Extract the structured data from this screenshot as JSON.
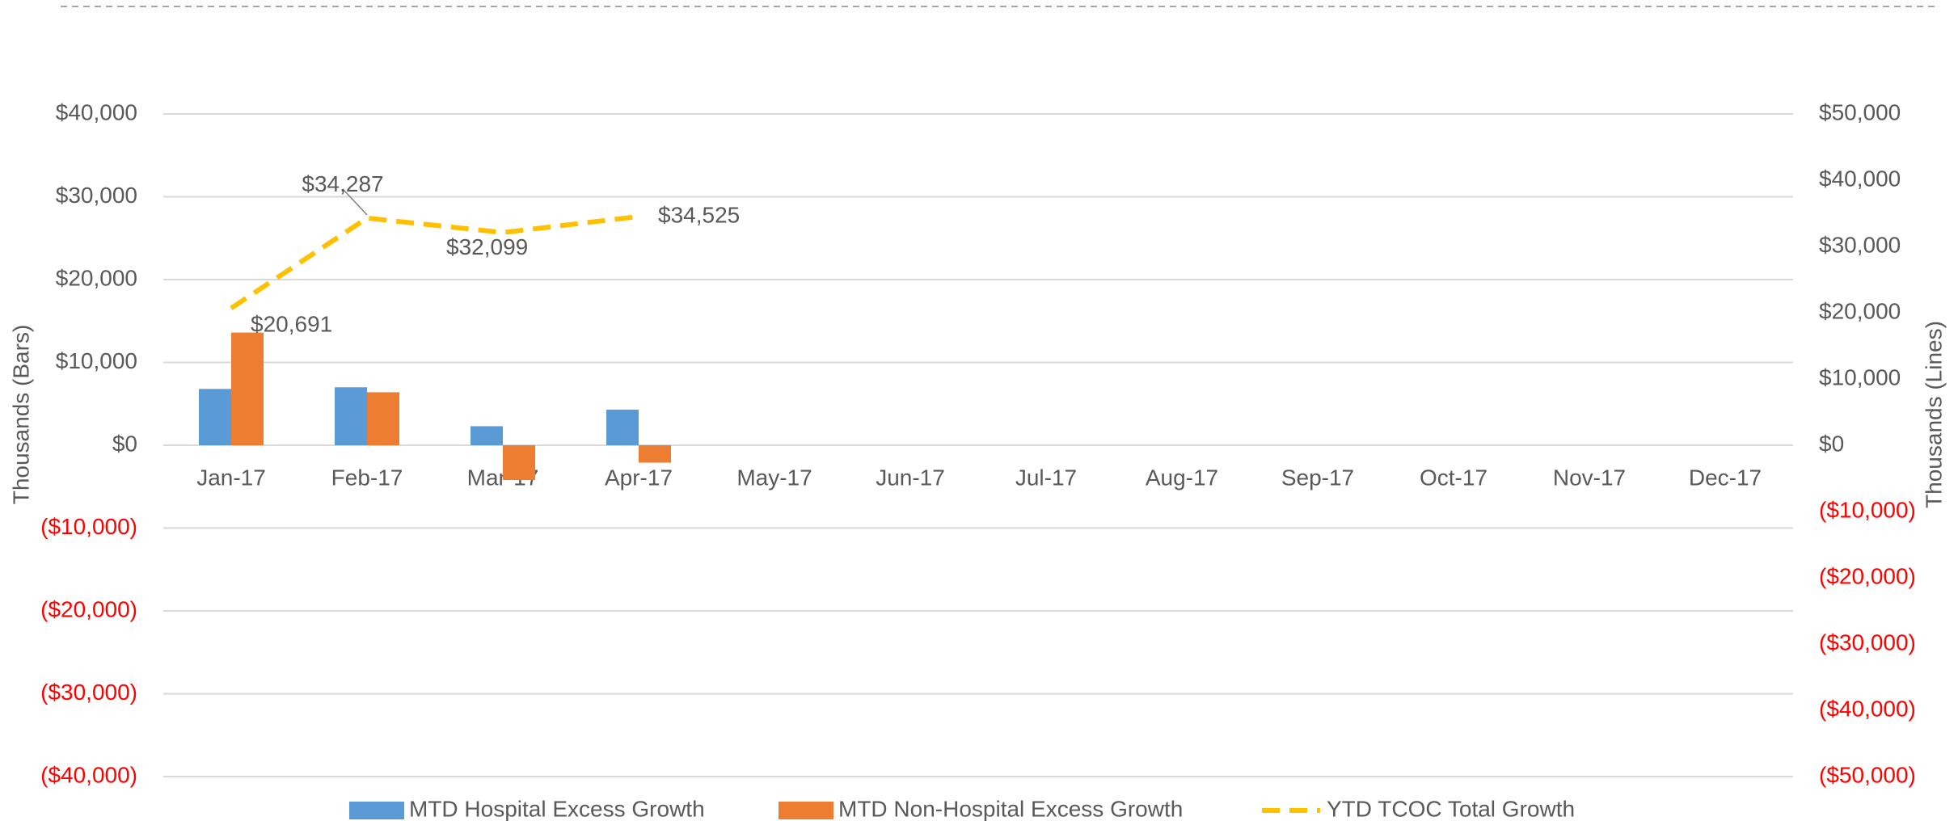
{
  "chart_data": {
    "type": "combo",
    "categories": [
      "Jan-17",
      "Feb-17",
      "Mar-17",
      "Apr-17",
      "May-17",
      "Jun-17",
      "Jul-17",
      "Aug-17",
      "Sep-17",
      "Oct-17",
      "Nov-17",
      "Dec-17"
    ],
    "series": [
      {
        "name": "MTD Hospital Excess Growth",
        "type": "bar",
        "color": "#5b9bd5",
        "values": [
          6800,
          7000,
          2300,
          4300,
          null,
          null,
          null,
          null,
          null,
          null,
          null,
          null
        ]
      },
      {
        "name": "MTD Non-Hospital Excess Growth",
        "type": "bar",
        "color": "#ed7d31",
        "values": [
          13600,
          6400,
          -4200,
          -2100,
          null,
          null,
          null,
          null,
          null,
          null,
          null,
          null
        ]
      },
      {
        "name": "YTD TCOC Total Growth",
        "type": "line",
        "axis": "y2",
        "color": "#ffc000",
        "dashed": true,
        "values": [
          20691,
          34287,
          32099,
          34525,
          null,
          null,
          null,
          null,
          null,
          null,
          null,
          null
        ],
        "value_labels": [
          "$20,691",
          "$34,287",
          "$32,099",
          "$34,525",
          null,
          null,
          null,
          null,
          null,
          null,
          null,
          null
        ]
      }
    ],
    "ylabel": "Thousands (Bars)",
    "y2label": "Thousands (Lines)",
    "ylim": [
      -40000,
      40000
    ],
    "yticks": [
      {
        "value": -40000,
        "label": "($40,000)"
      },
      {
        "value": -30000,
        "label": "($30,000)"
      },
      {
        "value": -20000,
        "label": "($20,000)"
      },
      {
        "value": -10000,
        "label": "($10,000)"
      },
      {
        "value": 0,
        "label": "$0"
      },
      {
        "value": 10000,
        "label": "$10,000"
      },
      {
        "value": 20000,
        "label": "$20,000"
      },
      {
        "value": 30000,
        "label": "$30,000"
      },
      {
        "value": 40000,
        "label": "$40,000"
      }
    ],
    "y2lim": [
      -50000,
      50000
    ],
    "y2ticks": [
      {
        "value": -50000,
        "label": "($50,000)"
      },
      {
        "value": -40000,
        "label": "($40,000)"
      },
      {
        "value": -30000,
        "label": "($30,000)"
      },
      {
        "value": -20000,
        "label": "($20,000)"
      },
      {
        "value": -10000,
        "label": "($10,000)"
      },
      {
        "value": 0,
        "label": "$0"
      },
      {
        "value": 10000,
        "label": "$10,000"
      },
      {
        "value": 20000,
        "label": "$20,000"
      },
      {
        "value": 30000,
        "label": "$30,000"
      },
      {
        "value": 40000,
        "label": "$40,000"
      },
      {
        "value": 50000,
        "label": "$50,000"
      }
    ],
    "grid": true,
    "negative_label_color": "#ff0000",
    "legend": "bottom"
  }
}
